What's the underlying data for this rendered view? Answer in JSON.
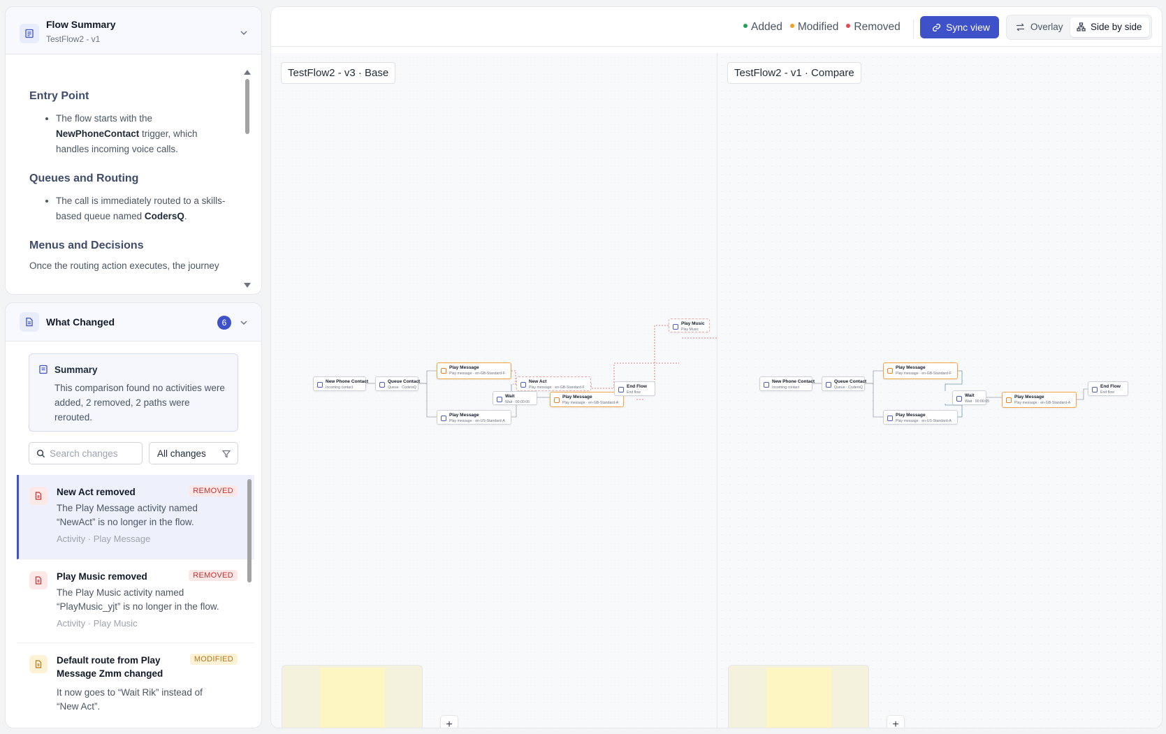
{
  "summary_panel": {
    "title": "Flow Summary",
    "subtitle": "TestFlow2 - v1",
    "entry": {
      "heading": "Entry Point",
      "pre": "The flow starts with the ",
      "strong": "NewPhoneContact",
      "post": " trigger, which handles incoming voice calls."
    },
    "queues": {
      "heading": "Queues and Routing",
      "pre": "The call is immediately routed to a skills-based queue named ",
      "strong": "CodersQ",
      "post": "."
    },
    "menus": {
      "heading": "Menus and Decisions",
      "text": "Once the routing action executes, the journey"
    }
  },
  "changes_panel": {
    "title": "What Changed",
    "count": "6",
    "summary": {
      "heading": "Summary",
      "text": "This comparison found no activities were added, 2 removed, 2 paths were rerouted."
    },
    "search_placeholder": "Search changes",
    "filter_value": "All changes",
    "items": [
      {
        "title": "New Act removed",
        "badge": "REMOVED",
        "desc": "The Play Message activity named “NewAct” is no longer in the flow.",
        "meta": "Activity · Play Message"
      },
      {
        "title": "Play Music removed",
        "badge": "REMOVED",
        "desc": "The Play Music activity named “PlayMusic_yjt” is no longer in the flow.",
        "meta": "Activity · Play Music"
      },
      {
        "title": "Default route from Play Message Zmm changed",
        "badge": "MODIFIED",
        "desc": "It now goes to “Wait Rik” instead of “New Act”.",
        "meta": ""
      }
    ]
  },
  "toolbar": {
    "legend_added": "Added",
    "legend_modified": "Modified",
    "legend_removed": "Removed",
    "sync_label": "Sync view",
    "overlay_label": "Overlay",
    "side_label": "Side by side"
  },
  "colors": {
    "added": "#22a35a",
    "modified": "#f0a020",
    "removed": "#e5484d",
    "accent": "#3f51c9"
  },
  "canvas": {
    "base_label": "TestFlow2 - v3 · Base",
    "compare_label": "TestFlow2 - v1 · Compare",
    "nodes": {
      "new_phone": "New Phone Contact",
      "new_phone_sub": "Incoming contact",
      "queue": "Queue Contact",
      "queue_sub": "Queue · CodersQ",
      "pm": "Play Message",
      "pm_gb_f": "Play message · en-GB-Standard-F",
      "pm_us_a": "Play message · en-US-Standard-A",
      "pm_gb_a": "Play message · en-GB-Standard-A",
      "new_act": "New Act",
      "wait": "Wait",
      "wait_sub": "Wait · 00:00:05",
      "end": "End Flow",
      "end_sub": "End flow",
      "music": "Play Music",
      "music_sub": "Play Music"
    }
  }
}
